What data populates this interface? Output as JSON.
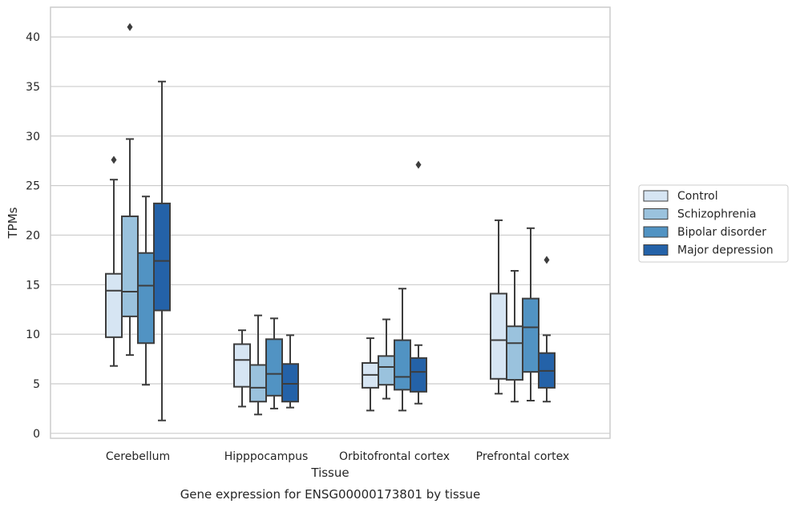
{
  "chart_data": {
    "type": "box",
    "title": "",
    "caption": "Gene expression for ENSG00000173801 by tissue",
    "xlabel": "Tissue",
    "ylabel": "TPMs",
    "ylim": [
      -0.5,
      43
    ],
    "yticks": [
      0,
      5,
      10,
      15,
      20,
      25,
      30,
      35,
      40
    ],
    "grid": "horizontal",
    "legend_position": "right",
    "categories": [
      "Cerebellum",
      "Hipppocampus",
      "Orbitofrontal cortex",
      "Prefrontal cortex"
    ],
    "series": [
      {
        "name": "Control",
        "color": "#d6e5f3",
        "boxes": [
          {
            "whisker_low": 6.8,
            "q1": 9.7,
            "median": 14.4,
            "q3": 16.1,
            "whisker_high": 25.6,
            "outliers": [
              27.6
            ]
          },
          {
            "whisker_low": 2.7,
            "q1": 4.7,
            "median": 7.4,
            "q3": 9.0,
            "whisker_high": 10.4,
            "outliers": []
          },
          {
            "whisker_low": 2.3,
            "q1": 4.6,
            "median": 5.9,
            "q3": 7.1,
            "whisker_high": 9.6,
            "outliers": []
          },
          {
            "whisker_low": 4.0,
            "q1": 5.5,
            "median": 9.4,
            "q3": 14.1,
            "whisker_high": 21.5,
            "outliers": []
          }
        ]
      },
      {
        "name": "Schizophrenia",
        "color": "#9ac2dd",
        "boxes": [
          {
            "whisker_low": 7.9,
            "q1": 11.8,
            "median": 14.3,
            "q3": 21.9,
            "whisker_high": 29.7,
            "outliers": [
              41.0
            ]
          },
          {
            "whisker_low": 1.9,
            "q1": 3.2,
            "median": 4.6,
            "q3": 6.9,
            "whisker_high": 11.9,
            "outliers": []
          },
          {
            "whisker_low": 3.5,
            "q1": 4.9,
            "median": 6.7,
            "q3": 7.8,
            "whisker_high": 11.5,
            "outliers": []
          },
          {
            "whisker_low": 3.2,
            "q1": 5.4,
            "median": 9.1,
            "q3": 10.8,
            "whisker_high": 16.4,
            "outliers": []
          }
        ]
      },
      {
        "name": "Bipolar disorder",
        "color": "#5193c3",
        "boxes": [
          {
            "whisker_low": 4.9,
            "q1": 9.1,
            "median": 14.9,
            "q3": 18.2,
            "whisker_high": 23.9,
            "outliers": []
          },
          {
            "whisker_low": 2.5,
            "q1": 3.8,
            "median": 6.0,
            "q3": 9.5,
            "whisker_high": 11.6,
            "outliers": []
          },
          {
            "whisker_low": 2.3,
            "q1": 4.4,
            "median": 5.7,
            "q3": 9.4,
            "whisker_high": 14.6,
            "outliers": []
          },
          {
            "whisker_low": 3.3,
            "q1": 6.2,
            "median": 10.7,
            "q3": 13.6,
            "whisker_high": 20.7,
            "outliers": []
          }
        ]
      },
      {
        "name": "Major depression",
        "color": "#2462a8",
        "boxes": [
          {
            "whisker_low": 1.3,
            "q1": 12.4,
            "median": 17.4,
            "q3": 23.2,
            "whisker_high": 35.5,
            "outliers": []
          },
          {
            "whisker_low": 2.6,
            "q1": 3.2,
            "median": 5.0,
            "q3": 7.0,
            "whisker_high": 9.9,
            "outliers": []
          },
          {
            "whisker_low": 3.0,
            "q1": 4.2,
            "median": 6.2,
            "q3": 7.6,
            "whisker_high": 8.9,
            "outliers": [
              27.1
            ]
          },
          {
            "whisker_low": 3.2,
            "q1": 4.6,
            "median": 6.3,
            "q3": 8.1,
            "whisker_high": 9.9,
            "outliers": [
              17.5
            ]
          }
        ]
      }
    ]
  }
}
